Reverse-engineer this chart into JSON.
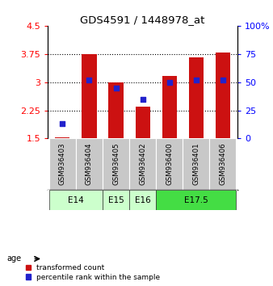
{
  "title": "GDS4591 / 1448978_at",
  "samples": [
    "GSM936403",
    "GSM936404",
    "GSM936405",
    "GSM936402",
    "GSM936400",
    "GSM936401",
    "GSM936406"
  ],
  "transformed_counts": [
    1.53,
    3.75,
    3.0,
    2.35,
    3.17,
    3.65,
    3.78
  ],
  "percentile_ranks": [
    13,
    52,
    45,
    35,
    50,
    52,
    52
  ],
  "ylim_left": [
    1.5,
    4.5
  ],
  "ylim_right": [
    0,
    100
  ],
  "yticks_left": [
    1.5,
    2.25,
    3.0,
    3.75,
    4.5
  ],
  "yticks_right": [
    0,
    25,
    50,
    75,
    100
  ],
  "ytick_labels_left": [
    "1.5",
    "2.25",
    "3",
    "3.75",
    "4.5"
  ],
  "ytick_labels_right": [
    "0",
    "25",
    "50",
    "75",
    "100%"
  ],
  "bar_color": "#cc1111",
  "dot_color": "#2222cc",
  "age_groups": [
    {
      "label": "E14",
      "samples": [
        0,
        1
      ],
      "color": "#ccffcc"
    },
    {
      "label": "E15",
      "samples": [
        2
      ],
      "color": "#ccffcc"
    },
    {
      "label": "E16",
      "samples": [
        3
      ],
      "color": "#ccffcc"
    },
    {
      "label": "E17.5",
      "samples": [
        4,
        5,
        6
      ],
      "color": "#44dd44"
    }
  ],
  "bar_width": 0.55,
  "baseline": 1.5,
  "grid_ticks": [
    2.25,
    3.0,
    3.75
  ],
  "label_color": "#c8c8c8",
  "age_border_color": "#333333"
}
